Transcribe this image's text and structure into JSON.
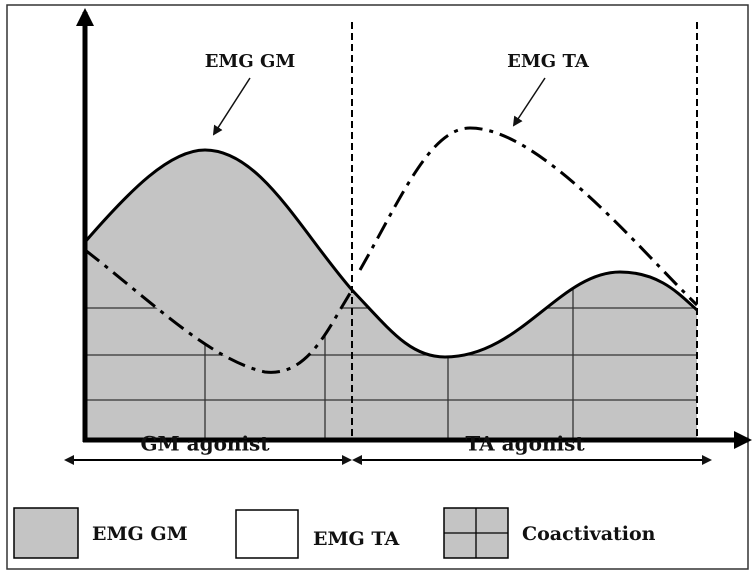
{
  "annotations": {
    "gm": "EMG GM",
    "ta": "EMG TA"
  },
  "phases": {
    "gm": "GM agonist",
    "ta": "TA agonist"
  },
  "legend": {
    "items": [
      "EMG GM",
      "EMG TA",
      "Coactivation"
    ]
  }
}
